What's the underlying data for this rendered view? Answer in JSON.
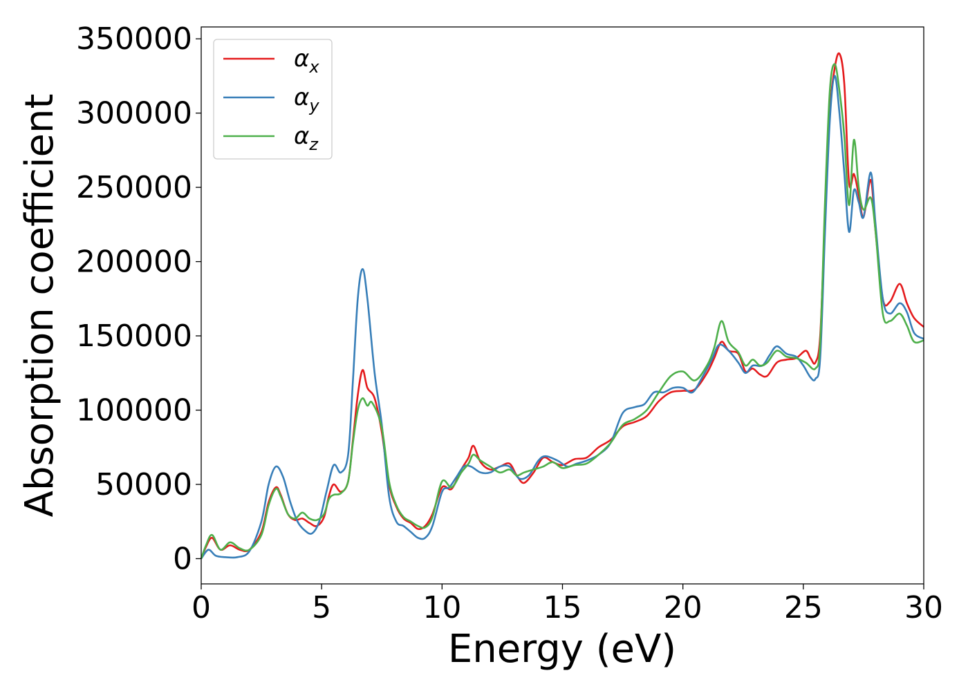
{
  "chart_data": {
    "type": "line",
    "title": "",
    "xlabel": "Energy (eV)",
    "ylabel": "Absorption coefficient",
    "xlim": [
      0,
      30
    ],
    "ylim": [
      -17000,
      358000
    ],
    "x_ticks": [
      0,
      5,
      10,
      15,
      20,
      25,
      30
    ],
    "y_ticks": [
      0,
      50000,
      100000,
      150000,
      200000,
      250000,
      300000,
      350000
    ],
    "grid": false,
    "legend_position": "top-left",
    "series": [
      {
        "name": "α",
        "subscript": "x",
        "color": "#e41a1c",
        "points": [
          [
            0,
            0
          ],
          [
            0.2,
            8000
          ],
          [
            0.45,
            14000
          ],
          [
            0.8,
            6000
          ],
          [
            1.2,
            9000
          ],
          [
            1.6,
            6000
          ],
          [
            2.0,
            6000
          ],
          [
            2.5,
            18000
          ],
          [
            2.8,
            38000
          ],
          [
            3.1,
            48000
          ],
          [
            3.3,
            43000
          ],
          [
            3.6,
            30000
          ],
          [
            3.9,
            26000
          ],
          [
            4.2,
            27000
          ],
          [
            4.5,
            24000
          ],
          [
            4.8,
            22000
          ],
          [
            5.1,
            28000
          ],
          [
            5.3,
            42000
          ],
          [
            5.5,
            50000
          ],
          [
            5.8,
            45000
          ],
          [
            6.1,
            52000
          ],
          [
            6.3,
            80000
          ],
          [
            6.5,
            110000
          ],
          [
            6.7,
            127000
          ],
          [
            6.9,
            115000
          ],
          [
            7.2,
            108000
          ],
          [
            7.5,
            85000
          ],
          [
            7.8,
            50000
          ],
          [
            8.1,
            35000
          ],
          [
            8.4,
            27000
          ],
          [
            8.7,
            24000
          ],
          [
            9.0,
            20000
          ],
          [
            9.3,
            22000
          ],
          [
            9.6,
            30000
          ],
          [
            10.0,
            48000
          ],
          [
            10.4,
            47000
          ],
          [
            10.8,
            60000
          ],
          [
            11.1,
            68000
          ],
          [
            11.3,
            76000
          ],
          [
            11.6,
            65000
          ],
          [
            12.0,
            60000
          ],
          [
            12.4,
            62000
          ],
          [
            12.8,
            64000
          ],
          [
            13.1,
            56000
          ],
          [
            13.4,
            51000
          ],
          [
            13.8,
            58000
          ],
          [
            14.2,
            68000
          ],
          [
            14.6,
            65000
          ],
          [
            15.0,
            63000
          ],
          [
            15.5,
            67000
          ],
          [
            16.0,
            68000
          ],
          [
            16.5,
            75000
          ],
          [
            17.0,
            80000
          ],
          [
            17.5,
            89000
          ],
          [
            18.0,
            92000
          ],
          [
            18.5,
            96000
          ],
          [
            19.0,
            106000
          ],
          [
            19.5,
            112000
          ],
          [
            20.0,
            113000
          ],
          [
            20.5,
            114000
          ],
          [
            21.0,
            125000
          ],
          [
            21.3,
            135000
          ],
          [
            21.6,
            146000
          ],
          [
            21.9,
            140000
          ],
          [
            22.3,
            138000
          ],
          [
            22.6,
            126000
          ],
          [
            22.9,
            128000
          ],
          [
            23.2,
            124000
          ],
          [
            23.5,
            123000
          ],
          [
            23.9,
            132000
          ],
          [
            24.3,
            134000
          ],
          [
            24.7,
            135000
          ],
          [
            25.1,
            140000
          ],
          [
            25.3,
            135000
          ],
          [
            25.5,
            132000
          ],
          [
            25.7,
            150000
          ],
          [
            25.9,
            230000
          ],
          [
            26.1,
            300000
          ],
          [
            26.3,
            330000
          ],
          [
            26.5,
            340000
          ],
          [
            26.7,
            320000
          ],
          [
            26.9,
            253000
          ],
          [
            27.1,
            259000
          ],
          [
            27.3,
            245000
          ],
          [
            27.5,
            230000
          ],
          [
            27.8,
            255000
          ],
          [
            28.0,
            220000
          ],
          [
            28.3,
            175000
          ],
          [
            28.6,
            173000
          ],
          [
            29.0,
            185000
          ],
          [
            29.3,
            172000
          ],
          [
            29.6,
            162000
          ],
          [
            30.0,
            156000
          ]
        ]
      },
      {
        "name": "α",
        "subscript": "y",
        "color": "#377eb8",
        "points": [
          [
            0,
            0
          ],
          [
            0.3,
            6000
          ],
          [
            0.6,
            2000
          ],
          [
            1.0,
            1000
          ],
          [
            1.5,
            1000
          ],
          [
            2.0,
            5000
          ],
          [
            2.5,
            25000
          ],
          [
            2.8,
            50000
          ],
          [
            3.1,
            62000
          ],
          [
            3.4,
            55000
          ],
          [
            3.7,
            38000
          ],
          [
            4.0,
            25000
          ],
          [
            4.3,
            19000
          ],
          [
            4.6,
            17000
          ],
          [
            4.9,
            25000
          ],
          [
            5.2,
            45000
          ],
          [
            5.5,
            63000
          ],
          [
            5.8,
            58000
          ],
          [
            6.1,
            70000
          ],
          [
            6.3,
            120000
          ],
          [
            6.5,
            175000
          ],
          [
            6.7,
            195000
          ],
          [
            6.9,
            175000
          ],
          [
            7.2,
            125000
          ],
          [
            7.5,
            90000
          ],
          [
            7.8,
            42000
          ],
          [
            8.1,
            25000
          ],
          [
            8.4,
            22000
          ],
          [
            8.7,
            18000
          ],
          [
            9.0,
            14000
          ],
          [
            9.3,
            14000
          ],
          [
            9.6,
            22000
          ],
          [
            10.0,
            45000
          ],
          [
            10.3,
            48000
          ],
          [
            10.6,
            55000
          ],
          [
            10.9,
            62000
          ],
          [
            11.2,
            62000
          ],
          [
            11.6,
            58000
          ],
          [
            12.0,
            58000
          ],
          [
            12.4,
            62000
          ],
          [
            12.8,
            62000
          ],
          [
            13.2,
            54000
          ],
          [
            13.6,
            56000
          ],
          [
            14.0,
            66000
          ],
          [
            14.3,
            69000
          ],
          [
            14.8,
            66000
          ],
          [
            15.2,
            62000
          ],
          [
            15.6,
            64000
          ],
          [
            16.0,
            66000
          ],
          [
            16.5,
            70000
          ],
          [
            17.0,
            78000
          ],
          [
            17.5,
            98000
          ],
          [
            18.0,
            102000
          ],
          [
            18.4,
            104000
          ],
          [
            18.8,
            112000
          ],
          [
            19.2,
            112000
          ],
          [
            19.6,
            115000
          ],
          [
            20.0,
            115000
          ],
          [
            20.4,
            112000
          ],
          [
            20.8,
            122000
          ],
          [
            21.2,
            134000
          ],
          [
            21.5,
            144000
          ],
          [
            21.9,
            140000
          ],
          [
            22.3,
            132000
          ],
          [
            22.6,
            125000
          ],
          [
            22.9,
            130000
          ],
          [
            23.3,
            130000
          ],
          [
            23.6,
            137000
          ],
          [
            23.9,
            143000
          ],
          [
            24.3,
            138000
          ],
          [
            24.7,
            136000
          ],
          [
            25.0,
            130000
          ],
          [
            25.3,
            122000
          ],
          [
            25.5,
            121000
          ],
          [
            25.7,
            135000
          ],
          [
            25.9,
            220000
          ],
          [
            26.1,
            295000
          ],
          [
            26.3,
            325000
          ],
          [
            26.5,
            300000
          ],
          [
            26.7,
            260000
          ],
          [
            26.9,
            220000
          ],
          [
            27.1,
            248000
          ],
          [
            27.3,
            240000
          ],
          [
            27.5,
            230000
          ],
          [
            27.8,
            260000
          ],
          [
            28.0,
            225000
          ],
          [
            28.3,
            175000
          ],
          [
            28.6,
            165000
          ],
          [
            29.0,
            172000
          ],
          [
            29.3,
            166000
          ],
          [
            29.6,
            152000
          ],
          [
            30.0,
            148000
          ]
        ]
      },
      {
        "name": "α",
        "subscript": "z",
        "color": "#4daf4a",
        "points": [
          [
            0,
            0
          ],
          [
            0.2,
            9000
          ],
          [
            0.45,
            16000
          ],
          [
            0.8,
            6000
          ],
          [
            1.2,
            11000
          ],
          [
            1.6,
            7000
          ],
          [
            2.0,
            6000
          ],
          [
            2.5,
            16000
          ],
          [
            2.8,
            36000
          ],
          [
            3.1,
            47000
          ],
          [
            3.3,
            42000
          ],
          [
            3.6,
            30000
          ],
          [
            3.9,
            27000
          ],
          [
            4.2,
            31000
          ],
          [
            4.5,
            27000
          ],
          [
            4.8,
            26000
          ],
          [
            5.1,
            30000
          ],
          [
            5.3,
            40000
          ],
          [
            5.5,
            43000
          ],
          [
            5.8,
            44000
          ],
          [
            6.1,
            52000
          ],
          [
            6.3,
            78000
          ],
          [
            6.5,
            100000
          ],
          [
            6.7,
            108000
          ],
          [
            6.9,
            103000
          ],
          [
            7.1,
            105000
          ],
          [
            7.5,
            88000
          ],
          [
            7.8,
            52000
          ],
          [
            8.1,
            36000
          ],
          [
            8.4,
            28000
          ],
          [
            8.7,
            25000
          ],
          [
            9.0,
            22000
          ],
          [
            9.3,
            21000
          ],
          [
            9.6,
            28000
          ],
          [
            10.0,
            52000
          ],
          [
            10.4,
            48000
          ],
          [
            10.8,
            58000
          ],
          [
            11.1,
            64000
          ],
          [
            11.3,
            70000
          ],
          [
            11.6,
            66000
          ],
          [
            12.0,
            62000
          ],
          [
            12.4,
            58000
          ],
          [
            12.8,
            60000
          ],
          [
            13.1,
            56000
          ],
          [
            13.4,
            58000
          ],
          [
            13.8,
            60000
          ],
          [
            14.2,
            62000
          ],
          [
            14.6,
            65000
          ],
          [
            15.0,
            61000
          ],
          [
            15.5,
            63000
          ],
          [
            16.0,
            64000
          ],
          [
            16.5,
            70000
          ],
          [
            17.0,
            78000
          ],
          [
            17.5,
            90000
          ],
          [
            18.0,
            94000
          ],
          [
            18.5,
            100000
          ],
          [
            19.0,
            112000
          ],
          [
            19.5,
            123000
          ],
          [
            20.0,
            126000
          ],
          [
            20.5,
            120000
          ],
          [
            21.0,
            130000
          ],
          [
            21.3,
            142000
          ],
          [
            21.6,
            160000
          ],
          [
            21.9,
            146000
          ],
          [
            22.3,
            139000
          ],
          [
            22.6,
            130000
          ],
          [
            22.9,
            134000
          ],
          [
            23.2,
            130000
          ],
          [
            23.5,
            132000
          ],
          [
            23.9,
            140000
          ],
          [
            24.3,
            136000
          ],
          [
            24.7,
            135000
          ],
          [
            25.1,
            132000
          ],
          [
            25.5,
            128000
          ],
          [
            25.7,
            145000
          ],
          [
            25.9,
            240000
          ],
          [
            26.1,
            315000
          ],
          [
            26.3,
            333000
          ],
          [
            26.5,
            315000
          ],
          [
            26.7,
            285000
          ],
          [
            26.9,
            238000
          ],
          [
            27.1,
            282000
          ],
          [
            27.3,
            250000
          ],
          [
            27.5,
            235000
          ],
          [
            27.8,
            243000
          ],
          [
            28.0,
            220000
          ],
          [
            28.3,
            165000
          ],
          [
            28.6,
            160000
          ],
          [
            29.0,
            165000
          ],
          [
            29.3,
            157000
          ],
          [
            29.6,
            146000
          ],
          [
            30.0,
            147000
          ]
        ]
      }
    ]
  }
}
